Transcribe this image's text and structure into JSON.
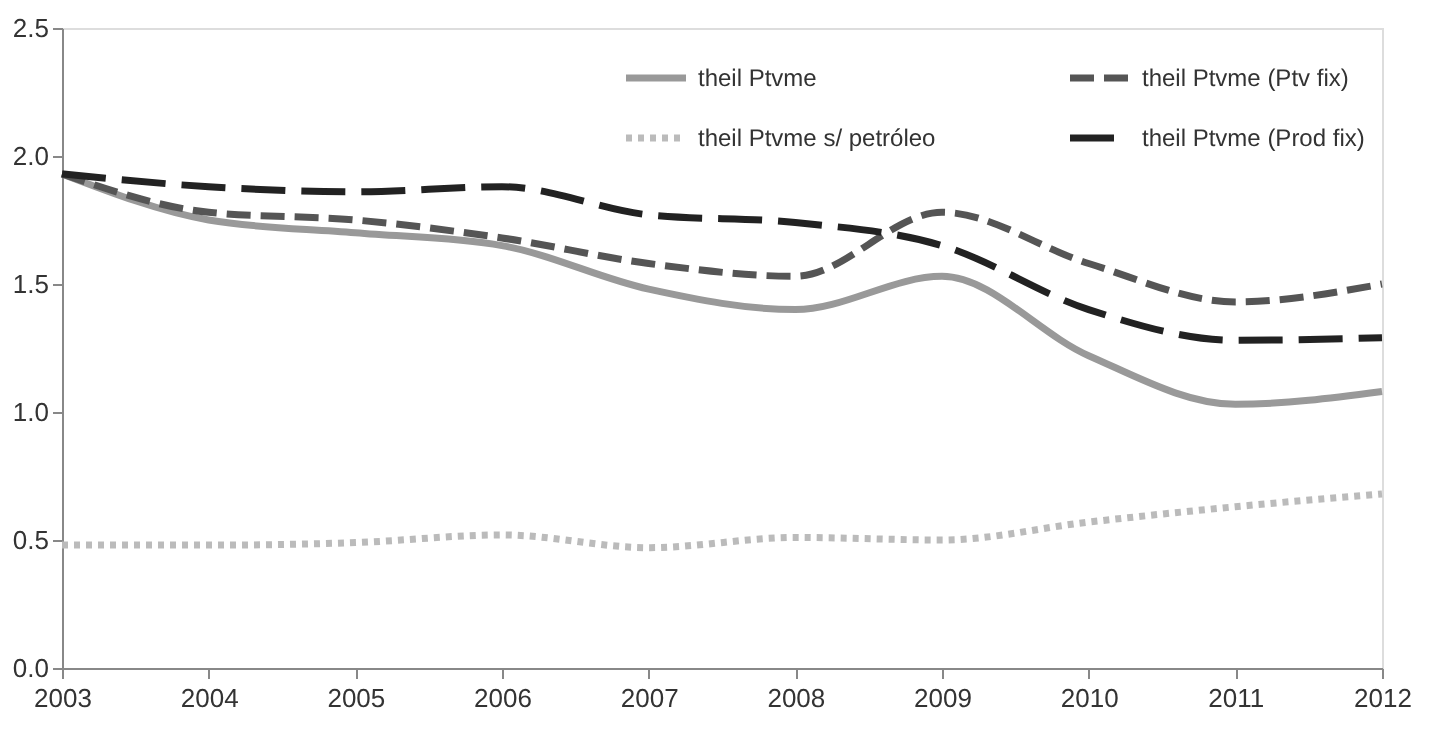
{
  "chart_data": {
    "type": "line",
    "x": [
      2003,
      2004,
      2005,
      2006,
      2007,
      2008,
      2009,
      2010,
      2011,
      2012
    ],
    "series": [
      {
        "name": "theil Ptvme",
        "color": "#999999",
        "line_style": "solid",
        "values": [
          1.93,
          1.75,
          1.7,
          1.65,
          1.48,
          1.4,
          1.53,
          1.22,
          1.03,
          1.08
        ]
      },
      {
        "name": "theil Ptvme s/ petróleo",
        "color": "#bbbbbb",
        "line_style": "dotted",
        "values": [
          0.48,
          0.48,
          0.49,
          0.52,
          0.47,
          0.51,
          0.5,
          0.57,
          0.63,
          0.68
        ]
      },
      {
        "name": "theil Ptvme (Ptv fix)",
        "color": "#555555",
        "line_style": "dashed",
        "values": [
          1.93,
          1.78,
          1.75,
          1.68,
          1.58,
          1.53,
          1.78,
          1.58,
          1.43,
          1.5
        ]
      },
      {
        "name": "theil Ptvme (Prod fix)",
        "color": "#222222",
        "line_style": "dashed",
        "values": [
          1.93,
          1.88,
          1.86,
          1.88,
          1.77,
          1.74,
          1.65,
          1.4,
          1.28,
          1.29
        ]
      }
    ],
    "xlim": [
      2003,
      2012
    ],
    "xticks": [
      2003,
      2004,
      2005,
      2006,
      2007,
      2008,
      2009,
      2010,
      2011,
      2012
    ],
    "ylim": [
      0,
      2.5
    ],
    "yticks": [
      {
        "value": 0,
        "label": "0.0"
      },
      {
        "value": 0.5,
        "label": "0.5"
      },
      {
        "value": 1,
        "label": "1.0"
      },
      {
        "value": 1.5,
        "label": "1.5"
      },
      {
        "value": 2,
        "label": "2.0"
      },
      {
        "value": 2.5,
        "label": "2.5"
      }
    ],
    "grid": false,
    "legend": "top right",
    "marker": "none"
  }
}
